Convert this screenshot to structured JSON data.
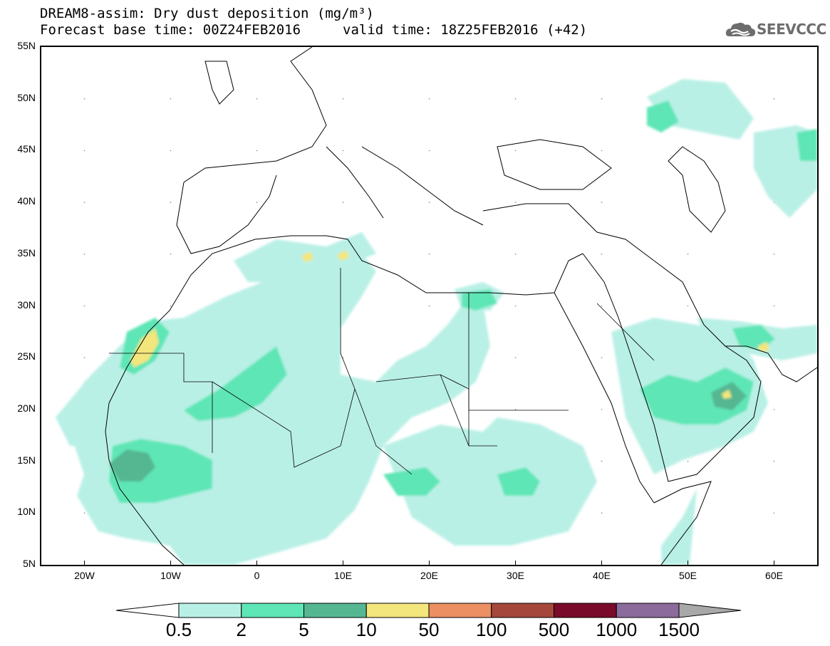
{
  "title": {
    "line1": "DREAM8-assim: Dry dust deposition (mg/m³)",
    "base_time": "Forecast base time: 00Z24FEB2016",
    "valid_time": "valid time: 18Z25FEB2016 (+42)"
  },
  "logo": {
    "text": "SEEVCCC",
    "icon": "cloud-icon"
  },
  "map": {
    "projection": "lat-lon",
    "lon_range": [
      -25,
      65
    ],
    "lat_range": [
      5,
      55
    ],
    "lat_labels": [
      "55N",
      "50N",
      "45N",
      "40N",
      "35N",
      "30N",
      "25N",
      "20N",
      "15N",
      "10N",
      "5N"
    ],
    "lon_labels": [
      "20W",
      "10W",
      "0",
      "10E",
      "20E",
      "30E",
      "40E",
      "50E",
      "60E"
    ],
    "grid": "dotted"
  },
  "colorbar": {
    "labels": [
      "0.5",
      "2",
      "5",
      "10",
      "50",
      "100",
      "500",
      "1000",
      "1500"
    ],
    "colors": [
      "#ffffff",
      "#b9f0e6",
      "#5ee6b6",
      "#55b792",
      "#f2e67c",
      "#ec8f63",
      "#a5473b",
      "#7a0a2a",
      "#8b6b9c",
      "#a8a8a8"
    ]
  }
}
